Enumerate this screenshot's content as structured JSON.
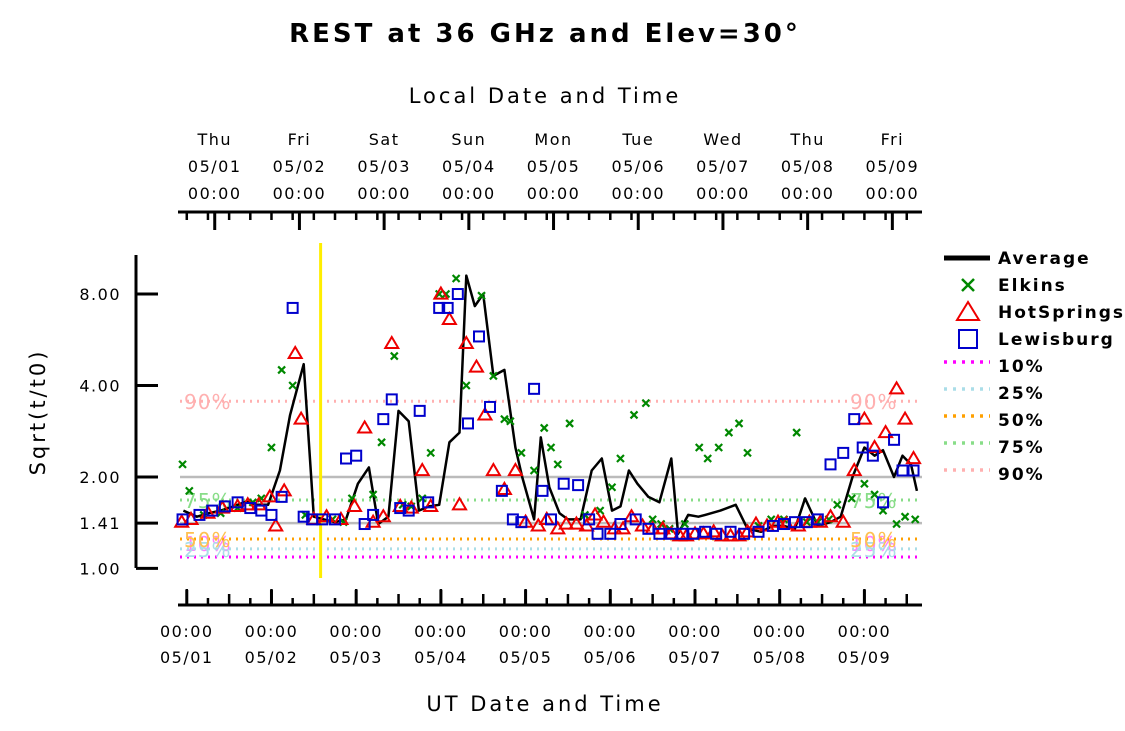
{
  "chart_data": {
    "type": "line",
    "title": "REST at 36 GHz and Elev=30°",
    "top_axis_title": "Local Date and Time",
    "xlabel": "UT Date and Time",
    "ylabel": "Sqrt(t/t0)",
    "y_ticks": [
      {
        "value": 1.0,
        "label": "1.00"
      },
      {
        "value": 1.41,
        "label": "1.41"
      },
      {
        "value": 2.0,
        "label": "2.00"
      },
      {
        "value": 4.0,
        "label": "4.00"
      },
      {
        "value": 8.0,
        "label": "8.00"
      }
    ],
    "y_scale": "log",
    "ylim": [
      0.93,
      11.0
    ],
    "xlim_days": [
      -0.08,
      8.68
    ],
    "gray_gridlines": [
      1.41,
      2.0
    ],
    "bottom_ticks": [
      {
        "day": 0,
        "time": "00:00",
        "date": "05/01"
      },
      {
        "day": 1,
        "time": "00:00",
        "date": "05/02"
      },
      {
        "day": 2,
        "time": "00:00",
        "date": "05/03"
      },
      {
        "day": 3,
        "time": "00:00",
        "date": "05/04"
      },
      {
        "day": 4,
        "time": "00:00",
        "date": "05/05"
      },
      {
        "day": 5,
        "time": "00:00",
        "date": "05/06"
      },
      {
        "day": 6,
        "time": "00:00",
        "date": "05/07"
      },
      {
        "day": 7,
        "time": "00:00",
        "date": "05/08"
      },
      {
        "day": 8,
        "time": "00:00",
        "date": "05/09"
      }
    ],
    "top_ticks": [
      {
        "day": 0.33,
        "weekday": "Thu",
        "date": "05/01",
        "time": "00:00"
      },
      {
        "day": 1.33,
        "weekday": "Fri",
        "date": "05/02",
        "time": "00:00"
      },
      {
        "day": 2.33,
        "weekday": "Sat",
        "date": "05/03",
        "time": "00:00"
      },
      {
        "day": 3.33,
        "weekday": "Sun",
        "date": "05/04",
        "time": "00:00"
      },
      {
        "day": 4.33,
        "weekday": "Mon",
        "date": "05/05",
        "time": "00:00"
      },
      {
        "day": 5.33,
        "weekday": "Tue",
        "date": "05/06",
        "time": "00:00"
      },
      {
        "day": 6.33,
        "weekday": "Wed",
        "date": "05/07",
        "time": "00:00"
      },
      {
        "day": 7.33,
        "weekday": "Thu",
        "date": "05/08",
        "time": "00:00"
      },
      {
        "day": 8.33,
        "weekday": "Fri",
        "date": "05/09",
        "time": "00:00"
      }
    ],
    "vertical_marker": {
      "day": 1.58,
      "color": "#ffee00"
    },
    "percentiles": [
      {
        "name": "10%",
        "value": 1.09,
        "color": "#ff00ff",
        "label_color": "#ff80ff"
      },
      {
        "name": "25%",
        "value": 1.16,
        "color": "#aadde8",
        "label_color": "#aadde8"
      },
      {
        "name": "50%",
        "value": 1.25,
        "color": "#ffa000",
        "label_color": "#ffc050"
      },
      {
        "name": "75%",
        "value": 1.68,
        "color": "#88dd88",
        "label_color": "#88dd88"
      },
      {
        "name": "90%",
        "value": 3.55,
        "color": "#ffb0b0",
        "label_color": "#ffb0b0"
      }
    ],
    "legend_position": "right",
    "series": [
      {
        "name": "Average",
        "kind": "line",
        "color": "#000000",
        "x": [
          -0.04,
          0.12,
          0.26,
          0.4,
          0.55,
          0.7,
          0.82,
          0.96,
          1.1,
          1.22,
          1.38,
          1.5,
          1.62,
          1.75,
          1.88,
          2.02,
          2.15,
          2.26,
          2.38,
          2.5,
          2.62,
          2.74,
          2.86,
          2.98,
          3.1,
          3.22,
          3.3,
          3.4,
          3.5,
          3.62,
          3.75,
          3.88,
          3.96,
          4.1,
          4.18,
          4.28,
          4.4,
          4.5,
          4.65,
          4.78,
          4.9,
          5.02,
          5.12,
          5.22,
          5.32,
          5.45,
          5.58,
          5.72,
          5.8,
          5.92,
          6.04,
          6.12,
          6.3,
          6.48,
          6.62,
          6.78,
          6.92,
          7.05,
          7.18,
          7.3,
          7.45,
          7.6,
          7.72,
          7.86,
          8.0,
          8.12,
          8.22,
          8.35,
          8.45,
          8.55,
          8.62
        ],
        "y": [
          1.55,
          1.48,
          1.52,
          1.55,
          1.6,
          1.66,
          1.62,
          1.62,
          2.1,
          3.2,
          4.7,
          1.48,
          1.45,
          1.42,
          1.45,
          1.9,
          2.15,
          1.4,
          1.48,
          3.3,
          3.05,
          1.55,
          1.6,
          1.62,
          2.6,
          2.8,
          9.2,
          7.3,
          8.0,
          4.3,
          4.5,
          2.5,
          2.0,
          1.45,
          2.7,
          1.85,
          1.52,
          1.45,
          1.45,
          2.1,
          2.3,
          1.55,
          1.6,
          2.1,
          1.9,
          1.72,
          1.65,
          2.3,
          1.3,
          1.5,
          1.48,
          1.5,
          1.55,
          1.62,
          1.35,
          1.32,
          1.38,
          1.38,
          1.35,
          1.7,
          1.38,
          1.42,
          1.48,
          2.0,
          2.5,
          2.35,
          2.45,
          2.0,
          2.35,
          2.2,
          1.8
        ]
      },
      {
        "name": "Elkins",
        "kind": "x",
        "color": "#008800",
        "x": [
          -0.05,
          0.03,
          0.2,
          0.4,
          0.6,
          0.78,
          0.88,
          1.0,
          1.12,
          1.25,
          1.4,
          1.72,
          1.85,
          1.95,
          2.2,
          2.3,
          2.45,
          2.55,
          2.65,
          2.78,
          2.88,
          2.98,
          3.06,
          3.18,
          3.3,
          3.48,
          3.62,
          3.75,
          3.82,
          3.95,
          4.1,
          4.22,
          4.3,
          4.38,
          4.52,
          4.7,
          4.88,
          5.02,
          5.12,
          5.28,
          5.42,
          5.5,
          5.6,
          5.7,
          5.88,
          6.05,
          6.15,
          6.28,
          6.4,
          6.52,
          6.62,
          6.75,
          6.9,
          7.05,
          7.2,
          7.32,
          7.45,
          7.58,
          7.68,
          7.85,
          8.0,
          8.12,
          8.22,
          8.38,
          8.48,
          8.6
        ],
        "y": [
          2.2,
          1.8,
          1.5,
          1.52,
          1.58,
          1.65,
          1.7,
          2.5,
          4.5,
          4.0,
          1.5,
          1.45,
          1.42,
          1.7,
          1.75,
          2.6,
          5.0,
          1.62,
          1.6,
          1.7,
          2.4,
          8.0,
          8.0,
          9.0,
          4.0,
          7.9,
          4.3,
          3.1,
          3.05,
          2.4,
          2.1,
          2.9,
          2.5,
          2.2,
          3.0,
          1.5,
          1.55,
          1.85,
          2.3,
          3.2,
          3.5,
          1.45,
          1.4,
          1.35,
          1.4,
          2.5,
          2.3,
          2.5,
          2.8,
          3.0,
          2.4,
          1.38,
          1.45,
          1.45,
          2.8,
          1.42,
          1.42,
          1.45,
          1.62,
          1.7,
          1.9,
          1.75,
          1.55,
          1.4,
          1.48,
          1.45
        ]
      },
      {
        "name": "HotSprings",
        "kind": "triangle",
        "color": "#ee0000",
        "x": [
          -0.06,
          0.05,
          0.25,
          0.42,
          0.6,
          0.72,
          0.85,
          0.98,
          1.05,
          1.15,
          1.28,
          1.35,
          1.5,
          1.65,
          1.82,
          1.98,
          2.1,
          2.2,
          2.32,
          2.42,
          2.52,
          2.65,
          2.78,
          2.88,
          3.0,
          3.1,
          3.22,
          3.3,
          3.42,
          3.52,
          3.62,
          3.75,
          3.88,
          4.0,
          4.15,
          4.25,
          4.38,
          4.48,
          4.6,
          4.72,
          4.82,
          4.92,
          5.05,
          5.15,
          5.25,
          5.38,
          5.5,
          5.62,
          5.72,
          5.82,
          5.9,
          6.0,
          6.1,
          6.22,
          6.32,
          6.42,
          6.52,
          6.62,
          6.72,
          6.85,
          6.98,
          7.08,
          7.22,
          7.35,
          7.48,
          7.6,
          7.75,
          7.88,
          8.0,
          8.12,
          8.25,
          8.38,
          8.48,
          8.58
        ],
        "y": [
          1.42,
          1.45,
          1.52,
          1.58,
          1.6,
          1.62,
          1.62,
          1.72,
          1.38,
          1.8,
          5.1,
          3.1,
          1.45,
          1.48,
          1.45,
          1.6,
          2.9,
          1.42,
          1.48,
          5.5,
          1.6,
          1.58,
          2.1,
          1.6,
          8.0,
          6.6,
          1.62,
          5.5,
          4.6,
          3.2,
          2.1,
          1.82,
          2.1,
          1.42,
          1.38,
          1.45,
          1.35,
          1.4,
          1.4,
          1.38,
          1.5,
          1.42,
          1.35,
          1.35,
          1.48,
          1.38,
          1.35,
          1.35,
          1.3,
          1.28,
          1.28,
          1.3,
          1.3,
          1.32,
          1.28,
          1.28,
          1.28,
          1.32,
          1.4,
          1.38,
          1.42,
          1.4,
          1.38,
          1.42,
          1.42,
          1.48,
          1.42,
          2.1,
          3.1,
          2.5,
          2.8,
          3.9,
          3.1,
          2.3
        ]
      },
      {
        "name": "Lewisburg",
        "kind": "square",
        "color": "#0000cc",
        "x": [
          -0.05,
          0.15,
          0.3,
          0.45,
          0.6,
          0.75,
          0.88,
          1.0,
          1.12,
          1.25,
          1.38,
          1.48,
          1.6,
          1.75,
          1.88,
          2.0,
          2.1,
          2.2,
          2.32,
          2.42,
          2.52,
          2.62,
          2.75,
          2.85,
          2.98,
          3.08,
          3.2,
          3.32,
          3.45,
          3.58,
          3.72,
          3.85,
          3.95,
          4.1,
          4.2,
          4.3,
          4.45,
          4.62,
          4.75,
          4.85,
          5.0,
          5.12,
          5.3,
          5.45,
          5.58,
          5.72,
          5.85,
          5.98,
          6.12,
          6.25,
          6.42,
          6.58,
          6.75,
          6.92,
          7.05,
          7.18,
          7.32,
          7.45,
          7.6,
          7.75,
          7.88,
          7.98,
          8.1,
          8.22,
          8.35,
          8.45,
          8.58
        ],
        "y": [
          1.45,
          1.5,
          1.55,
          1.6,
          1.65,
          1.58,
          1.55,
          1.5,
          1.72,
          7.2,
          1.48,
          1.45,
          1.45,
          1.45,
          2.3,
          2.35,
          1.4,
          1.5,
          3.1,
          3.6,
          1.58,
          1.55,
          3.3,
          1.65,
          7.2,
          7.2,
          8.0,
          3.0,
          5.8,
          3.4,
          1.8,
          1.45,
          1.42,
          3.9,
          1.8,
          1.45,
          1.9,
          1.88,
          1.45,
          1.3,
          1.3,
          1.4,
          1.45,
          1.35,
          1.3,
          1.3,
          1.3,
          1.3,
          1.32,
          1.3,
          1.32,
          1.3,
          1.32,
          1.38,
          1.4,
          1.42,
          1.42,
          1.45,
          2.2,
          2.4,
          3.1,
          2.5,
          2.35,
          1.65,
          2.65,
          2.1,
          2.1
        ]
      }
    ]
  }
}
